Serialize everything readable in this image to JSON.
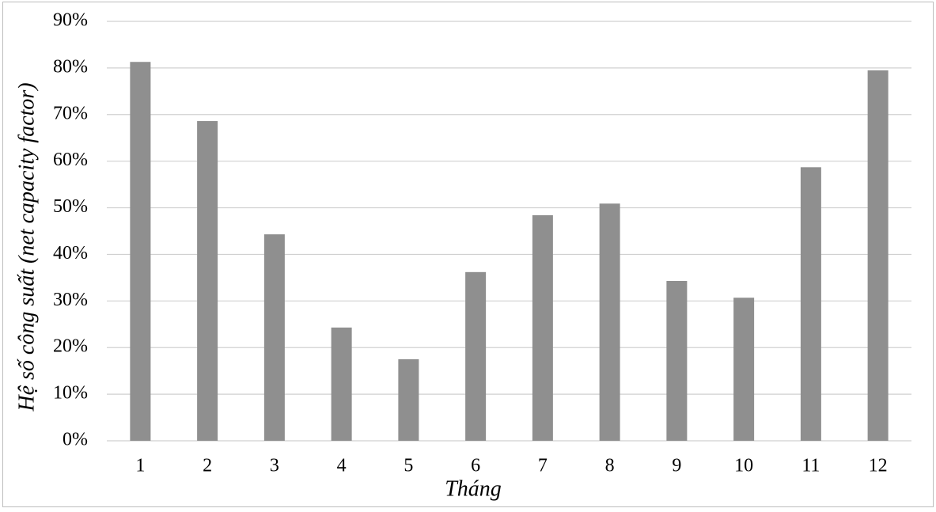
{
  "chart_data": {
    "type": "bar",
    "x_label": "Tháng",
    "y_label": "Hệ số công suất (net capacity factor)",
    "categories": [
      "1",
      "2",
      "3",
      "4",
      "5",
      "6",
      "7",
      "8",
      "9",
      "10",
      "11",
      "12"
    ],
    "values": [
      81.3,
      68.6,
      44.3,
      24.3,
      17.5,
      36.2,
      48.4,
      50.9,
      34.3,
      30.7,
      58.7,
      79.5
    ],
    "color": "#8f8f8f",
    "ylim": [
      0,
      90
    ],
    "yticks": [
      {
        "value": 0,
        "label": "0%"
      },
      {
        "value": 10,
        "label": "10%"
      },
      {
        "value": 20,
        "label": "20%"
      },
      {
        "value": 30,
        "label": "30%"
      },
      {
        "value": 40,
        "label": "40%"
      },
      {
        "value": 50,
        "label": "50%"
      },
      {
        "value": 60,
        "label": "60%"
      },
      {
        "value": 70,
        "label": "70%"
      },
      {
        "value": 80,
        "label": "80%"
      },
      {
        "value": 90,
        "label": "90%"
      }
    ],
    "grid": true
  }
}
